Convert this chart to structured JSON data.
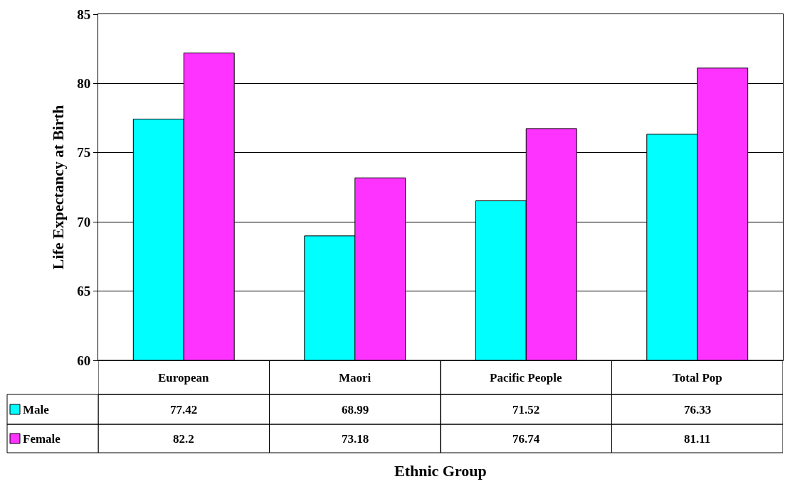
{
  "chart_data": {
    "type": "bar",
    "xlabel": "Ethnic Group",
    "ylabel": "Life Expectancy at Birth",
    "categories": [
      "European",
      "Maori",
      "Pacific People",
      "Total Pop"
    ],
    "series": [
      {
        "name": "Male",
        "color": "#00ffff",
        "values": [
          77.42,
          68.99,
          71.52,
          76.33
        ]
      },
      {
        "name": "Female",
        "color": "#ff33ff",
        "values": [
          82.2,
          73.18,
          76.74,
          81.11
        ]
      }
    ],
    "ylim": [
      60,
      85
    ],
    "yticks": [
      60,
      65,
      70,
      75,
      80,
      85
    ],
    "grid": "y",
    "legend": "bottom left",
    "data_labels": true
  }
}
